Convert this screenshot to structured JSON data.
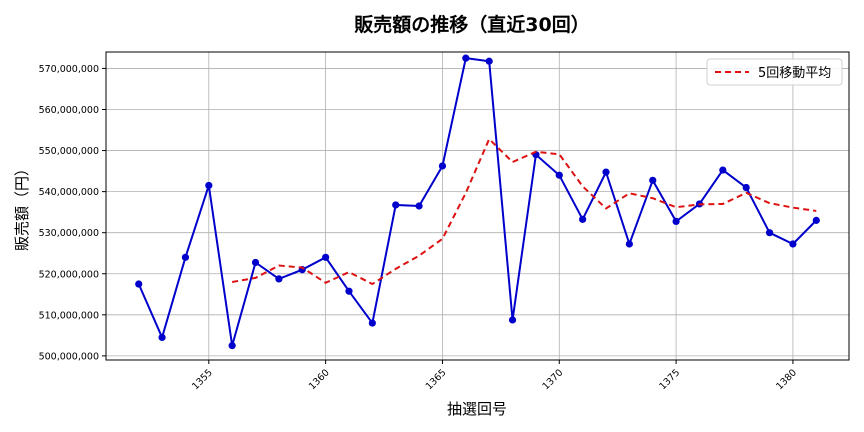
{
  "chart_data": {
    "type": "line",
    "title": "販売額の推移（直近30回）",
    "xlabel": "抽選回号",
    "ylabel": "販売額（円）",
    "ylim": [
      499000000,
      574000000
    ],
    "xlim": [
      1350.6,
      1382.4
    ],
    "yticks": [
      500000000,
      510000000,
      520000000,
      530000000,
      540000000,
      550000000,
      560000000,
      570000000
    ],
    "ytick_labels": [
      "500,000,000",
      "510,000,000",
      "520,000,000",
      "530,000,000",
      "540,000,000",
      "550,000,000",
      "560,000,000",
      "570,000,000"
    ],
    "xticks": [
      1355,
      1360,
      1365,
      1370,
      1375,
      1380
    ],
    "xtick_labels": [
      "1355",
      "1360",
      "1365",
      "1370",
      "1375",
      "1380"
    ],
    "grid": true,
    "legend_position": "upper right",
    "x": [
      1352,
      1353,
      1354,
      1355,
      1356,
      1357,
      1358,
      1359,
      1360,
      1361,
      1362,
      1363,
      1364,
      1365,
      1366,
      1367,
      1368,
      1369,
      1370,
      1371,
      1372,
      1373,
      1374,
      1375,
      1376,
      1377,
      1378,
      1379,
      1380,
      1381
    ],
    "series": [
      {
        "name": "販売額",
        "color": "#0000cc",
        "style": "solid-markers",
        "in_legend": false,
        "values": [
          517500000,
          504500000,
          524000000,
          541500000,
          502500000,
          522750000,
          518750000,
          521000000,
          524000000,
          515750000,
          508000000,
          536750000,
          536500000,
          546250000,
          572500000,
          571750000,
          508750000,
          549000000,
          544000000,
          533250000,
          544750000,
          527250000,
          542750000,
          532750000,
          537000000,
          545250000,
          541000000,
          530000000,
          527250000,
          533000000
        ]
      },
      {
        "name": "5回移動平均",
        "color": "#dd1111",
        "style": "dashed",
        "in_legend": true,
        "values": [
          null,
          null,
          null,
          null,
          518000000,
          519000000,
          522000000,
          521500000,
          517800000,
          520400000,
          517500000,
          521200000,
          524400000,
          528500000,
          539700000,
          552800000,
          547200000,
          549700000,
          549100000,
          541300000,
          535900000,
          539600000,
          538400000,
          536200000,
          536900000,
          537000000,
          539700000,
          537200000,
          536100000,
          535300000
        ]
      }
    ]
  }
}
